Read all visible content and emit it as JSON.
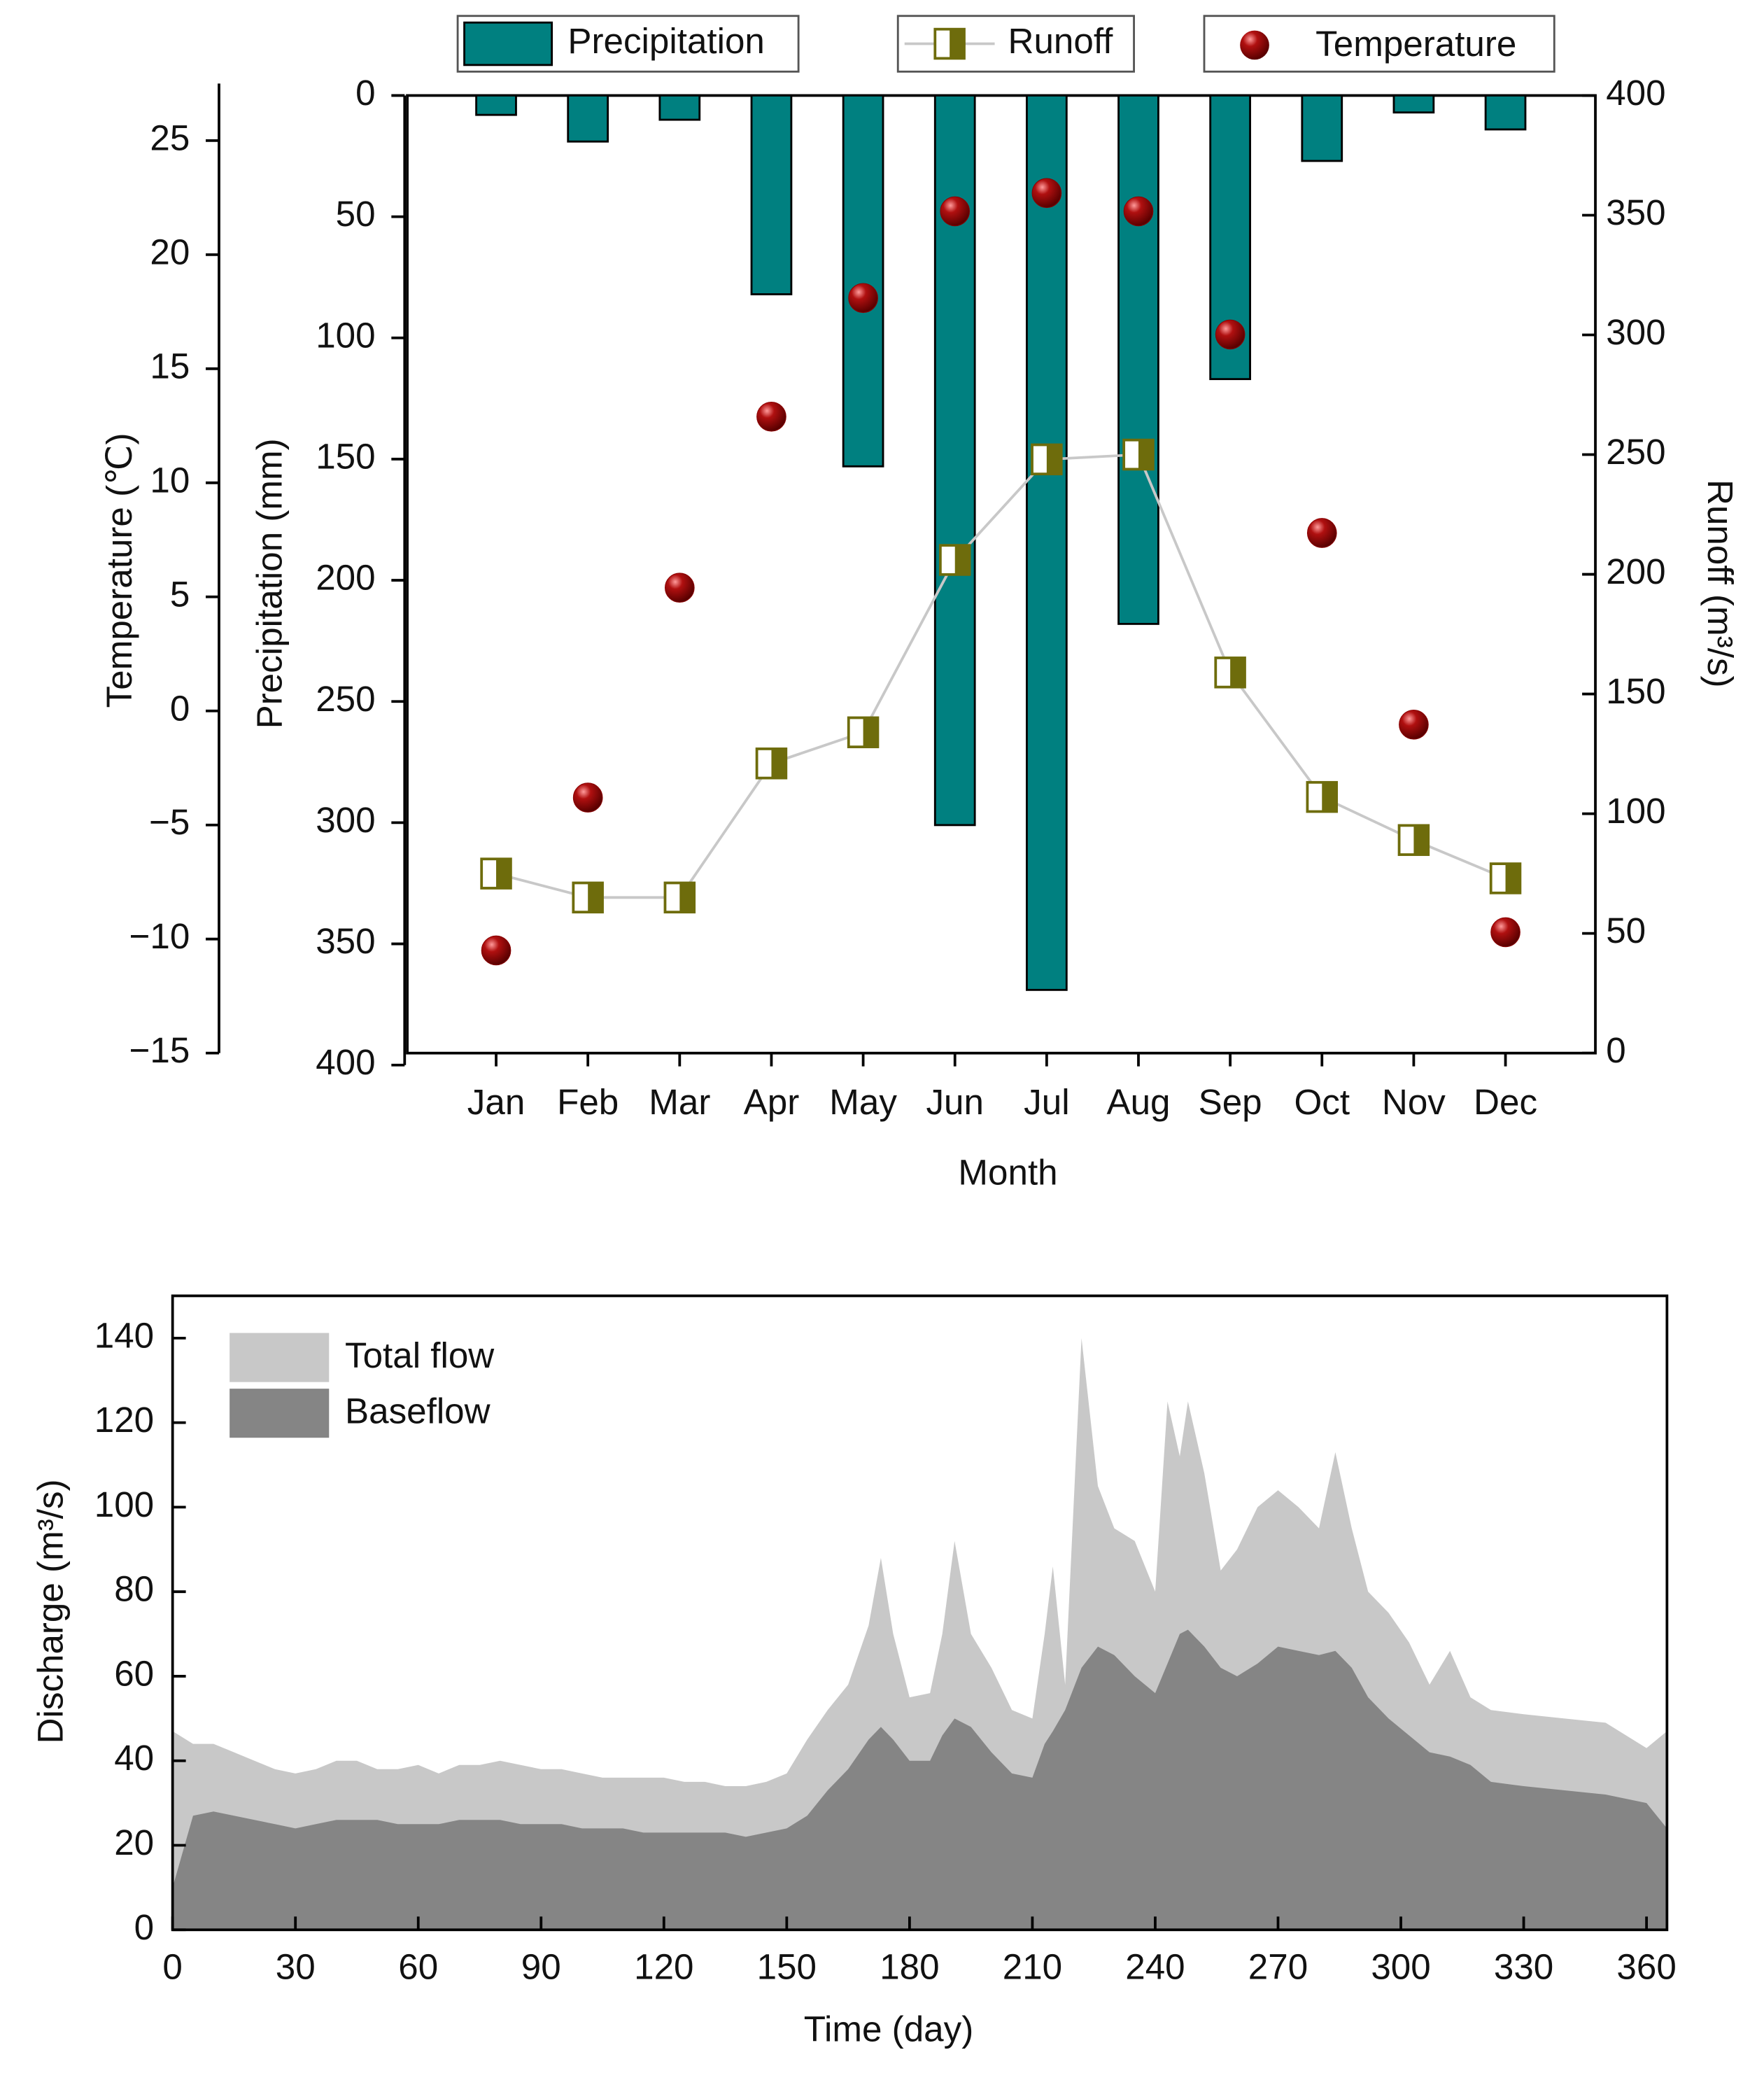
{
  "chart_data": [
    {
      "type": "combo",
      "x_label": "Month",
      "y_label": "Precipitation (mm)",
      "y2_label": "Runoff (m³/s)",
      "y3_label": "Temperature (℃)",
      "categories": [
        "Jan",
        "Feb",
        "Mar",
        "Apr",
        "May",
        "Jun",
        "Jul",
        "Aug",
        "Sep",
        "Oct",
        "Nov",
        "Dec"
      ],
      "yinvert": true,
      "ylim": [
        0,
        400
      ],
      "yticks": [
        0,
        50,
        100,
        150,
        200,
        250,
        300,
        350,
        400
      ],
      "y2lim": [
        0,
        400
      ],
      "y2ticks": [
        0,
        50,
        100,
        150,
        200,
        250,
        300,
        350,
        400
      ],
      "y3lim": [
        -15,
        27.5
      ],
      "y3ticks": [
        {
          "value": -15,
          "label": "−15"
        },
        {
          "value": -10,
          "label": "−10"
        },
        {
          "value": -5,
          "label": "−5"
        },
        0,
        5,
        10,
        15,
        20,
        25
      ],
      "series": [
        {
          "name": "Precipitation",
          "type": "bar",
          "color": "#008080",
          "values": [
            8,
            19,
            10,
            82,
            153,
            301,
            369,
            218,
            117,
            27,
            7,
            14
          ]
        },
        {
          "name": "Runoff",
          "type": "line",
          "axis": "y2",
          "color": "#6e6c0c",
          "line_color": "#c8c8c8",
          "values": [
            75,
            65,
            65,
            121,
            134,
            206,
            248,
            250,
            159,
            107,
            89,
            73
          ]
        },
        {
          "name": "Temperature",
          "type": "scatter",
          "axis": "y3",
          "color": "#8b0000",
          "values": [
            -10.5,
            -3.8,
            5.4,
            12.9,
            18.1,
            21.9,
            22.7,
            21.9,
            16.5,
            7.8,
            -0.6,
            -9.7
          ]
        }
      ]
    },
    {
      "type": "area",
      "x_label": "Time (day)",
      "y_label": "Discharge (m³/s)",
      "xlim": [
        0,
        365
      ],
      "xticks": [
        0,
        30,
        60,
        90,
        120,
        150,
        180,
        210,
        240,
        270,
        300,
        330,
        360
      ],
      "ylim": [
        0,
        150
      ],
      "yticks": [
        0,
        20,
        40,
        60,
        80,
        100,
        120,
        140
      ],
      "x": [
        0,
        5,
        10,
        15,
        20,
        25,
        30,
        35,
        40,
        45,
        50,
        55,
        60,
        65,
        70,
        75,
        80,
        85,
        90,
        95,
        100,
        105,
        110,
        115,
        120,
        125,
        130,
        135,
        140,
        145,
        150,
        155,
        160,
        165,
        170,
        173,
        176,
        180,
        185,
        188,
        191,
        195,
        200,
        205,
        210,
        213,
        215,
        218,
        222,
        226,
        230,
        235,
        240,
        243,
        246,
        248,
        252,
        256,
        260,
        265,
        270,
        275,
        280,
        284,
        288,
        292,
        297,
        302,
        307,
        312,
        317,
        322,
        330,
        340,
        350,
        360,
        365
      ],
      "series": [
        {
          "name": "Total flow",
          "color": "#c8c8c8",
          "values": [
            47,
            44,
            44,
            42,
            40,
            38,
            37,
            38,
            40,
            40,
            38,
            38,
            39,
            37,
            39,
            39,
            40,
            39,
            38,
            38,
            37,
            36,
            36,
            36,
            36,
            35,
            35,
            34,
            34,
            35,
            37,
            45,
            52,
            58,
            72,
            88,
            70,
            55,
            56,
            70,
            92,
            70,
            62,
            52,
            50,
            70,
            86,
            58,
            140,
            105,
            95,
            92,
            80,
            125,
            112,
            125,
            108,
            85,
            90,
            100,
            104,
            100,
            95,
            113,
            95,
            80,
            75,
            68,
            58,
            66,
            55,
            52,
            51,
            50,
            49,
            43,
            47
          ]
        },
        {
          "name": "Baseflow",
          "color": "#858585",
          "values": [
            10,
            27,
            28,
            27,
            26,
            25,
            24,
            25,
            26,
            26,
            26,
            25,
            25,
            25,
            26,
            26,
            26,
            25,
            25,
            25,
            24,
            24,
            24,
            23,
            23,
            23,
            23,
            23,
            22,
            23,
            24,
            27,
            33,
            38,
            45,
            48,
            45,
            40,
            40,
            46,
            50,
            48,
            42,
            37,
            36,
            44,
            47,
            52,
            62,
            67,
            65,
            60,
            56,
            63,
            70,
            71,
            67,
            62,
            60,
            63,
            67,
            66,
            65,
            66,
            62,
            55,
            50,
            46,
            42,
            41,
            39,
            35,
            34,
            33,
            32,
            30,
            24
          ]
        }
      ]
    }
  ]
}
